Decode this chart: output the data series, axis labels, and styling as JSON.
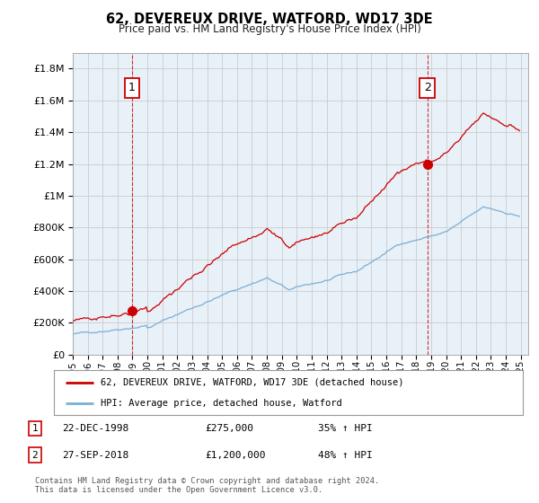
{
  "title": "62, DEVEREUX DRIVE, WATFORD, WD17 3DE",
  "subtitle": "Price paid vs. HM Land Registry's House Price Index (HPI)",
  "ytick_values": [
    0,
    200000,
    400000,
    600000,
    800000,
    1000000,
    1200000,
    1400000,
    1600000,
    1800000
  ],
  "ytick_labels": [
    "£0",
    "£200K",
    "£400K",
    "£600K",
    "£800K",
    "£1M",
    "£1.2M",
    "£1.4M",
    "£1.6M",
    "£1.8M"
  ],
  "ylim": [
    0,
    1900000
  ],
  "xlim_start": 1995.0,
  "xlim_end": 2025.5,
  "hpi_color": "#7bafd4",
  "price_color": "#cc0000",
  "plot_bg_color": "#e8f0f8",
  "sale1_date": 1998.97,
  "sale1_price": 275000,
  "sale2_date": 2018.74,
  "sale2_price": 1200000,
  "legend_label1": "62, DEVEREUX DRIVE, WATFORD, WD17 3DE (detached house)",
  "legend_label2": "HPI: Average price, detached house, Watford",
  "note1_num": "1",
  "note1_date": "22-DEC-1998",
  "note1_price": "£275,000",
  "note1_hpi": "35% ↑ HPI",
  "note2_num": "2",
  "note2_date": "27-SEP-2018",
  "note2_price": "£1,200,000",
  "note2_hpi": "48% ↑ HPI",
  "footer": "Contains HM Land Registry data © Crown copyright and database right 2024.\nThis data is licensed under the Open Government Licence v3.0.",
  "background_color": "#ffffff",
  "grid_color": "#cccccc"
}
